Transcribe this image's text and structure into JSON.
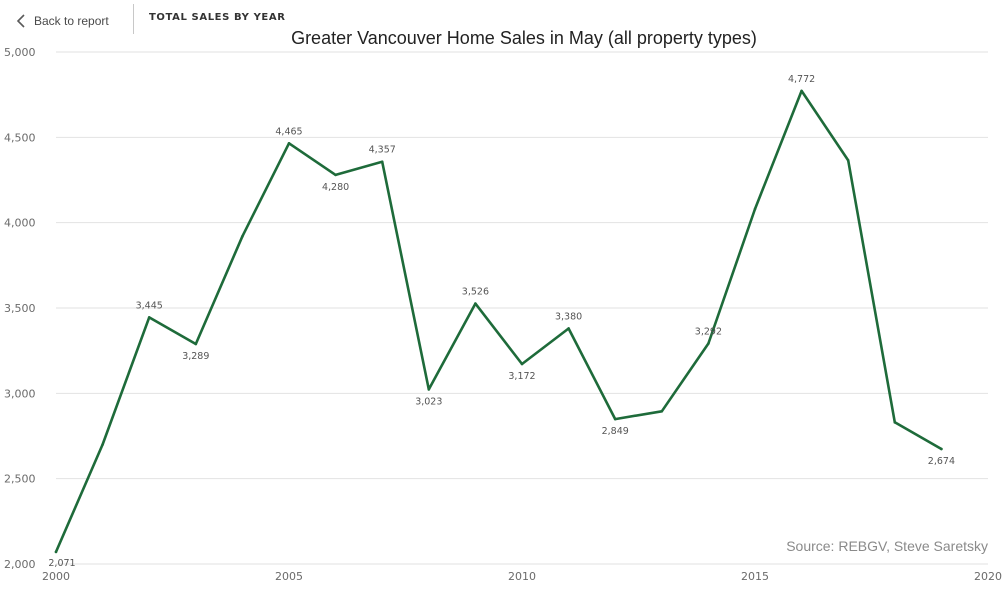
{
  "header": {
    "back_label": "Back to report",
    "report_title": "TOTAL SALES BY YEAR"
  },
  "colors": {
    "line": "#1e6b3a",
    "grid": "#e2e2e2",
    "axis_text": "#6b6b6b"
  },
  "chart_data": {
    "type": "line",
    "title": "Greater Vancouver Home Sales in May (all property types)",
    "xlabel": "",
    "ylabel": "",
    "xlim": [
      2000,
      2020
    ],
    "ylim": [
      2000,
      5000
    ],
    "x_ticks": [
      2000,
      2005,
      2010,
      2015,
      2020
    ],
    "y_ticks": [
      2000,
      2500,
      3000,
      3500,
      4000,
      4500,
      5000
    ],
    "grid": true,
    "source": "Source: REBGV, Steve Saretsky",
    "x": [
      2000,
      2001,
      2002,
      2003,
      2004,
      2005,
      2006,
      2007,
      2008,
      2009,
      2010,
      2011,
      2012,
      2013,
      2014,
      2015,
      2016,
      2017,
      2018,
      2019
    ],
    "series": [
      {
        "values": [
          2071,
          2700,
          3445,
          3289,
          3920,
          4465,
          4280,
          4357,
          3023,
          3526,
          3172,
          3380,
          2849,
          2895,
          3292,
          4080,
          4772,
          4365,
          2830,
          2674
        ],
        "labels": [
          "2,071",
          "",
          "3,445",
          "3,289",
          "",
          "4,465",
          "4,280",
          "4,357",
          "3,023",
          "3,526",
          "3,172",
          "3,380",
          "2,849",
          "",
          "3,292",
          "",
          "4,772",
          "",
          "",
          "2,674"
        ]
      }
    ]
  }
}
